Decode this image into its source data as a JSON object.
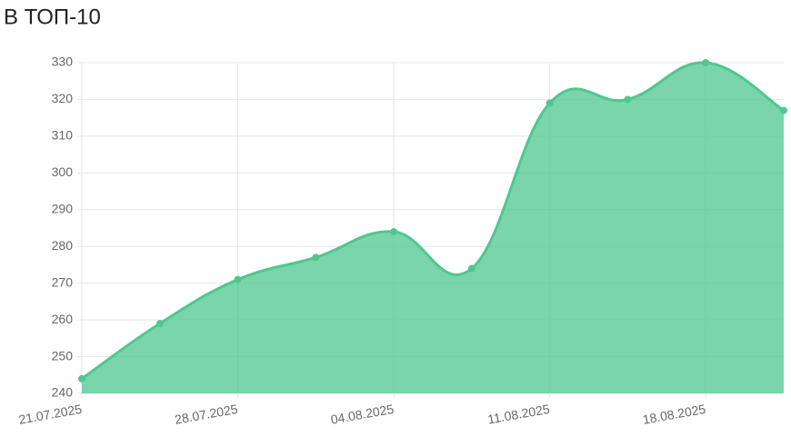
{
  "chart_data": {
    "type": "area",
    "title": "В ТОП-10",
    "categories": [
      "21.07.2025",
      null,
      "28.07.2025",
      null,
      "04.08.2025",
      null,
      "11.08.2025",
      null,
      "18.08.2025",
      null
    ],
    "values": [
      244,
      259,
      271,
      277,
      284,
      274,
      319,
      320,
      330,
      317
    ],
    "color": "#4fc78f",
    "ylim": [
      240,
      330
    ],
    "yticks": [
      240,
      250,
      260,
      270,
      280,
      290,
      300,
      310,
      320,
      330
    ],
    "grid": true
  }
}
